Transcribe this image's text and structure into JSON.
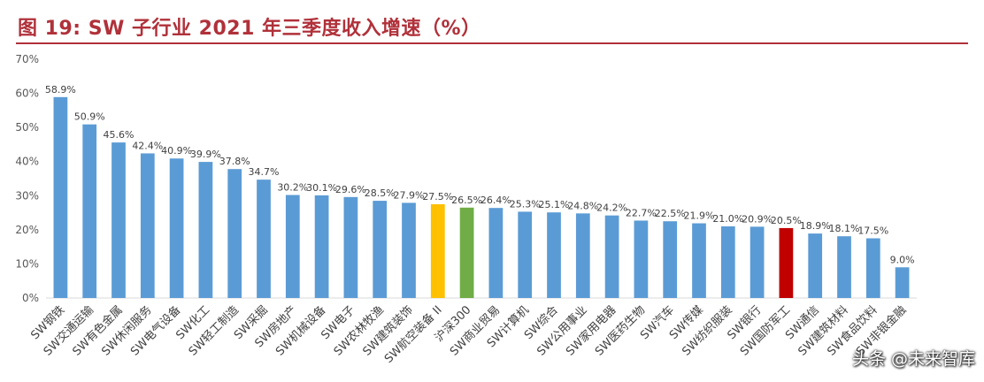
{
  "title": "图 19:  SW 子行业 2021 年三季度收入增速（%）",
  "watermark": "头条 @未来智库",
  "colors": {
    "default": "#5b9bd5",
    "highlight_yellow": "#ffc000",
    "highlight_green": "#70ad47",
    "highlight_red": "#c00000"
  },
  "chart_data": {
    "type": "bar",
    "title": "",
    "xlabel": "",
    "ylabel": "",
    "ylim": [
      0,
      70
    ],
    "yticks": [
      "0%",
      "10%",
      "20%",
      "30%",
      "40%",
      "50%",
      "60%",
      "70%"
    ],
    "ytick_values": [
      0,
      10,
      20,
      30,
      40,
      50,
      60,
      70
    ],
    "grid": false,
    "legend": "none",
    "categories": [
      "SW钢铁",
      "SW交通运输",
      "SW有色金属",
      "SW休闲服务",
      "SW电气设备",
      "SW化工",
      "SW轻工制造",
      "SW采掘",
      "SW房地产",
      "SW机械设备",
      "SW电子",
      "SW农林牧渔",
      "SW建筑装饰",
      "SW航空装备 II",
      "沪深300",
      "SW商业贸易",
      "SW计算机",
      "SW综合",
      "SW公用事业",
      "SW家用电器",
      "SW医药生物",
      "SW汽车",
      "SW传媒",
      "SW纺织服装",
      "SW银行",
      "SW国防军工",
      "SW通信",
      "SW建筑材料",
      "SW食品饮料",
      "SW非银金融"
    ],
    "values": [
      58.9,
      50.9,
      45.6,
      42.4,
      40.9,
      39.9,
      37.8,
      34.7,
      30.2,
      30.1,
      29.6,
      28.5,
      27.9,
      27.5,
      26.5,
      26.4,
      25.3,
      25.1,
      24.8,
      24.2,
      22.7,
      22.5,
      21.9,
      21.0,
      20.9,
      20.5,
      18.9,
      18.1,
      17.5,
      9.0
    ],
    "value_labels": [
      "58.9%",
      "50.9%",
      "45.6%",
      "42.4%",
      "40.9%",
      "39.9%",
      "37.8%",
      "34.7%",
      "30.2%",
      "30.1%",
      "29.6%",
      "28.5%",
      "27.9%",
      "27.5%",
      "26.5%",
      "26.4%",
      "25.3%",
      "25.1%",
      "24.8%",
      "24.2%",
      "22.7%",
      "22.5%",
      "21.9%",
      "21.0%",
      "20.9%",
      "20.5%",
      "18.9%",
      "18.1%",
      "17.5%",
      "9.0%"
    ],
    "bar_colors": [
      "default",
      "default",
      "default",
      "default",
      "default",
      "default",
      "default",
      "default",
      "default",
      "default",
      "default",
      "default",
      "default",
      "highlight_yellow",
      "highlight_green",
      "default",
      "default",
      "default",
      "default",
      "default",
      "default",
      "default",
      "default",
      "default",
      "default",
      "highlight_red",
      "default",
      "default",
      "default",
      "default"
    ]
  }
}
